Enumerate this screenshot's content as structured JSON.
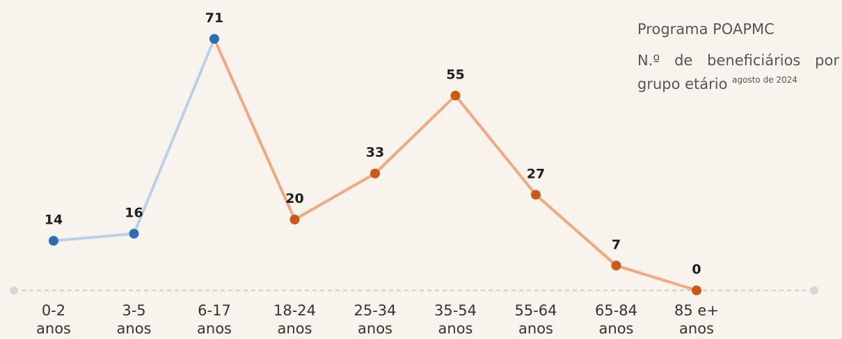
{
  "chart_data": {
    "type": "line",
    "title": "Programa POAPMC",
    "subtitle": "N.º de beneficiários por grupo etário",
    "note": "agosto de 2024",
    "categories": [
      "0-2 anos",
      "3-5 anos",
      "6-17 anos",
      "18-24 anos",
      "25-34 anos",
      "35-54 anos",
      "55-64 anos",
      "65-84 anos",
      "85 e+ anos"
    ],
    "values": [
      14,
      16,
      71,
      20,
      33,
      55,
      27,
      7,
      0
    ],
    "point_colors": [
      "#2e6db4",
      "#2e6db4",
      "#2e6db4",
      "#cc5a14",
      "#cc5a14",
      "#cc5a14",
      "#cc5a14",
      "#cc5a14",
      "#cc5a14"
    ],
    "line_colors": [
      "#b9d0e8",
      "#b9d0e8",
      "#f2a77f",
      "#f2a77f",
      "#f2a77f",
      "#f2a77f",
      "#f2a77f",
      "#f2a77f"
    ],
    "ylim": [
      0,
      71
    ]
  }
}
